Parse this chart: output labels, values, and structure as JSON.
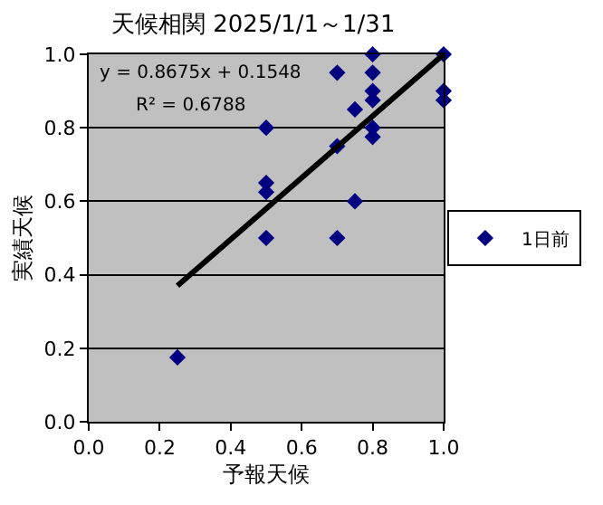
{
  "chart_data": {
    "type": "scatter",
    "title": "天候相関 2025/1/1～1/31",
    "xlabel": "予報天候",
    "ylabel": "実績天候",
    "series": [
      {
        "name": "1日前",
        "color": "#000080",
        "marker": "diamond",
        "x": [
          0.25,
          0.5,
          0.5,
          0.5,
          0.5,
          0.7,
          0.7,
          0.7,
          0.75,
          0.75,
          0.8,
          0.8,
          0.8,
          0.8,
          0.8,
          0.8,
          1.0,
          1.0,
          1.0
        ],
        "values": [
          0.175,
          0.8,
          0.65,
          0.625,
          0.5,
          0.95,
          0.75,
          0.5,
          0.85,
          0.6,
          1.0,
          0.95,
          0.9,
          0.875,
          0.8,
          0.775,
          1.0,
          0.9,
          0.875
        ]
      },
      {
        "type": "line",
        "color": "#000000",
        "marker": "none",
        "x": [
          0.25,
          1.0
        ],
        "values": [
          0.37,
          1.0
        ]
      }
    ],
    "annotations": [
      "y = 0.8675x + 0.1548",
      "R² = 0.6788"
    ],
    "xlim": [
      0,
      1
    ],
    "xticks": [
      {
        "value": 0,
        "label": "0.0"
      },
      {
        "value": 0.2,
        "label": "0.2"
      },
      {
        "value": 0.4,
        "label": "0.4"
      },
      {
        "value": 0.6,
        "label": "0.6"
      },
      {
        "value": 0.8,
        "label": "0.8"
      },
      {
        "value": 1,
        "label": "1.0"
      }
    ],
    "ylim": [
      0,
      1
    ],
    "yticks": [
      {
        "value": 0,
        "label": "0.0"
      },
      {
        "value": 0.2,
        "label": "0.2"
      },
      {
        "value": 0.4,
        "label": "0.4"
      },
      {
        "value": 0.6,
        "label": "0.6"
      },
      {
        "value": 0.8,
        "label": "0.8"
      },
      {
        "value": 1,
        "label": "1.0"
      }
    ],
    "grid": "y",
    "legend": "right"
  }
}
